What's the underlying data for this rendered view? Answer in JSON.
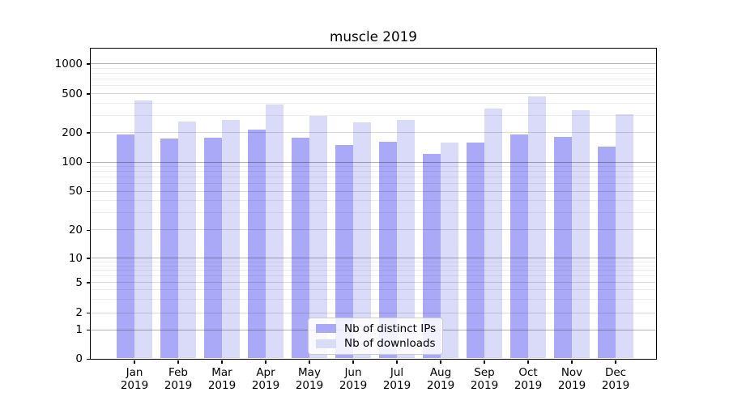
{
  "chart_data": {
    "type": "bar",
    "title": "muscle 2019",
    "categories": [
      "Jan",
      "Feb",
      "Mar",
      "Apr",
      "May",
      "Jun",
      "Jul",
      "Aug",
      "Sep",
      "Oct",
      "Nov",
      "Dec"
    ],
    "category_sub_label": "2019",
    "series": [
      {
        "name": "Nb of distinct IPs",
        "color": "#a9a9f7",
        "values": [
          190,
          174,
          176,
          213,
          176,
          150,
          160,
          121,
          157,
          192,
          181,
          143
        ]
      },
      {
        "name": "Nb of downloads",
        "color": "#dadaf9",
        "values": [
          424,
          261,
          270,
          389,
          297,
          252,
          271,
          159,
          349,
          466,
          336,
          306
        ]
      }
    ],
    "yscale": "symlog",
    "y_ticks": [
      0,
      1,
      2,
      5,
      10,
      20,
      50,
      100,
      200,
      500,
      1000
    ],
    "ylim": [
      0,
      1450
    ],
    "grid": true,
    "legend_position": "lower-center"
  },
  "colors": {
    "bar_dark": "#a9a9f7",
    "bar_light": "#dadaf9",
    "axis": "#000000",
    "grid_major": "#b2b2b2",
    "grid_sub": "#dadada",
    "grid_minor": "#ededed"
  }
}
